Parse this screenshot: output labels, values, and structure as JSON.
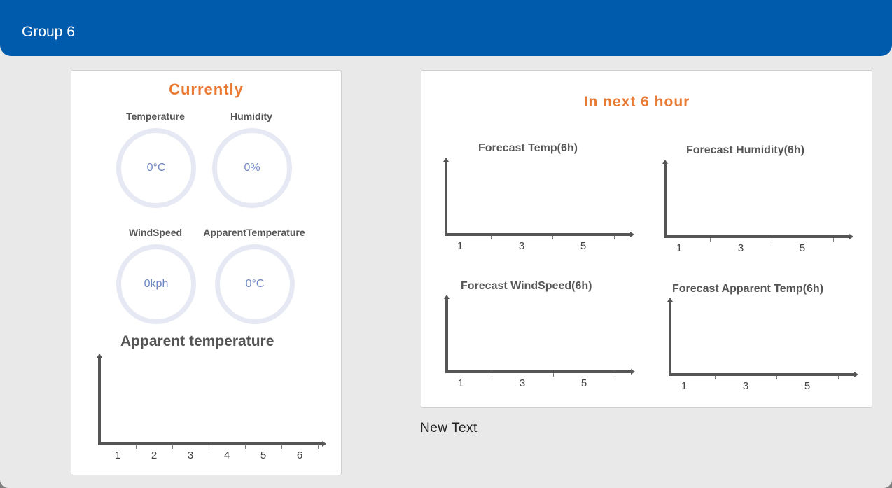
{
  "header": {
    "title": "Group 6"
  },
  "currently": {
    "title": "Currently",
    "gauges": [
      {
        "label": "Temperature",
        "value": "0°C"
      },
      {
        "label": "Humidity",
        "value": "0%"
      },
      {
        "label": "WindSpeed",
        "value": "0kph"
      },
      {
        "label": "ApparentTemperature",
        "value": "0°C"
      }
    ],
    "chart_title": "Apparent temperature",
    "chart_ticks": [
      "1",
      "2",
      "3",
      "4",
      "5",
      "6"
    ]
  },
  "forecast": {
    "title": "In next 6 hour",
    "charts": [
      {
        "title": "Forecast Temp(6h)",
        "ticks": [
          "1",
          "3",
          "5"
        ]
      },
      {
        "title": "Forecast Humidity(6h)",
        "ticks": [
          "1",
          "3",
          "5"
        ]
      },
      {
        "title": "Forecast WindSpeed(6h)",
        "ticks": [
          "1",
          "3",
          "5"
        ]
      },
      {
        "title": "Forecast Apparent Temp(6h)",
        "ticks": [
          "1",
          "3",
          "5"
        ]
      }
    ]
  },
  "footer": {
    "new_text": "New Text"
  },
  "colors": {
    "header": "#005bad",
    "accent": "#e87a34",
    "gauge_ring": "#e6e9f3",
    "gauge_text": "#6f86c6"
  },
  "chart_data": [
    {
      "type": "line",
      "title": "Apparent temperature",
      "x": [
        1,
        2,
        3,
        4,
        5,
        6
      ],
      "series": []
    },
    {
      "type": "line",
      "title": "Forecast Temp(6h)",
      "x": [
        1,
        3,
        5
      ],
      "series": []
    },
    {
      "type": "line",
      "title": "Forecast Humidity(6h)",
      "x": [
        1,
        3,
        5
      ],
      "series": []
    },
    {
      "type": "line",
      "title": "Forecast WindSpeed(6h)",
      "x": [
        1,
        3,
        5
      ],
      "series": []
    },
    {
      "type": "line",
      "title": "Forecast Apparent Temp(6h)",
      "x": [
        1,
        3,
        5
      ],
      "series": []
    }
  ]
}
